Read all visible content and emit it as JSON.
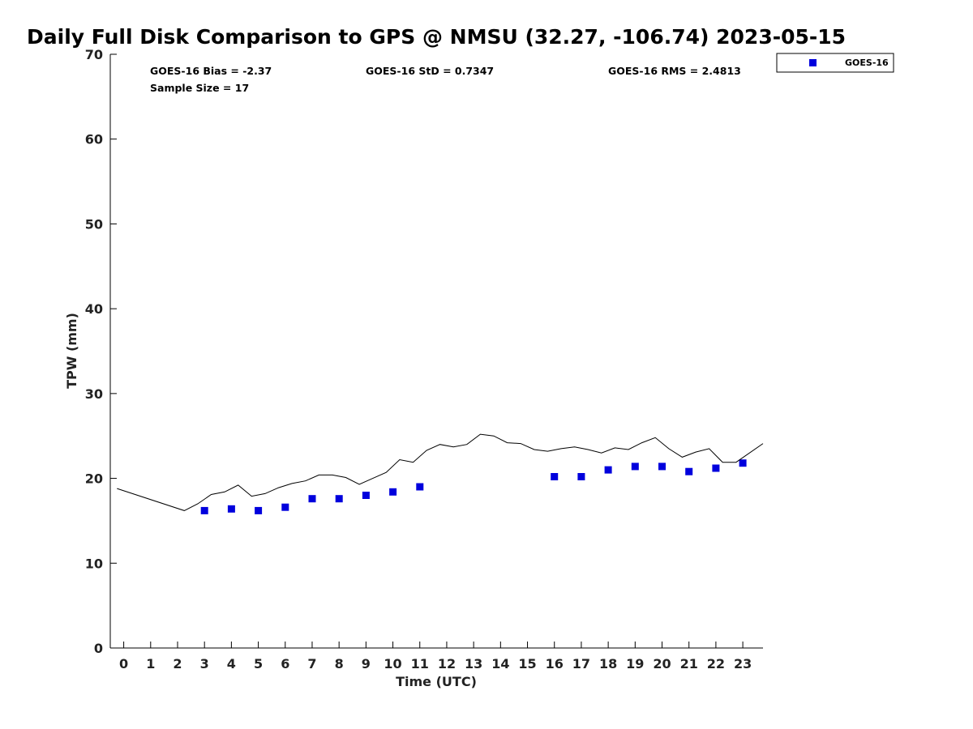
{
  "chart_data": {
    "type": "scatter",
    "title": "Daily Full Disk Comparison to GPS @ NMSU (32.27, -106.74) 2023-05-15",
    "xlabel": "Time (UTC)",
    "ylabel": "TPW (mm)",
    "xlim": [
      -0.5,
      23.75
    ],
    "ylim": [
      0,
      70
    ],
    "x_ticks": [
      0,
      1,
      2,
      3,
      4,
      5,
      6,
      7,
      8,
      9,
      10,
      11,
      12,
      13,
      14,
      15,
      16,
      17,
      18,
      19,
      20,
      21,
      22,
      23
    ],
    "y_ticks": [
      0,
      10,
      20,
      30,
      40,
      50,
      60,
      70
    ],
    "grid": false,
    "legend_position": "top-right",
    "stats": {
      "bias": "GOES-16 Bias = -2.37",
      "std": "GOES-16 StD = 0.7347",
      "rms": "GOES-16 RMS = 2.4813",
      "sample_size": "Sample Size = 17"
    },
    "series": [
      {
        "name": "GOES-16",
        "kind": "scatter",
        "color": "#0000dd",
        "marker": "square",
        "x": [
          3,
          4,
          5,
          6,
          7,
          8,
          9,
          10,
          11,
          16,
          17,
          18,
          19,
          20,
          21,
          22,
          23
        ],
        "y": [
          16.2,
          16.4,
          16.2,
          16.6,
          17.6,
          17.6,
          18.0,
          18.4,
          19.0,
          20.2,
          20.2,
          21.0,
          21.4,
          21.4,
          20.8,
          21.2,
          21.8
        ]
      },
      {
        "kind": "line",
        "color": "#000000",
        "x": [
          -0.25,
          2.25,
          2.75,
          3.25,
          3.75,
          4.25,
          4.75,
          5.25,
          5.75,
          6.25,
          6.75,
          7.25,
          7.75,
          8.25,
          8.75,
          9.25,
          9.75,
          10.25,
          10.75,
          11.25,
          11.75,
          12.25,
          12.75,
          13.25,
          13.75,
          14.25,
          14.75,
          15.25,
          15.75,
          16.25,
          16.75,
          17.25,
          17.75,
          18.25,
          18.75,
          19.25,
          19.75,
          20.25,
          20.75,
          21.25,
          21.75,
          22.25,
          22.75,
          23.75
        ],
        "y": [
          18.8,
          16.2,
          17.0,
          18.1,
          18.4,
          19.2,
          17.9,
          18.2,
          18.9,
          19.4,
          19.7,
          20.4,
          20.4,
          20.1,
          19.3,
          20.0,
          20.7,
          22.2,
          21.9,
          23.3,
          24.0,
          23.7,
          24.0,
          25.2,
          25.0,
          24.2,
          24.1,
          23.4,
          23.2,
          23.5,
          23.7,
          23.4,
          23.0,
          23.6,
          23.4,
          24.2,
          24.8,
          23.5,
          22.5,
          23.1,
          23.5,
          21.9,
          21.9,
          24.1
        ]
      }
    ]
  }
}
